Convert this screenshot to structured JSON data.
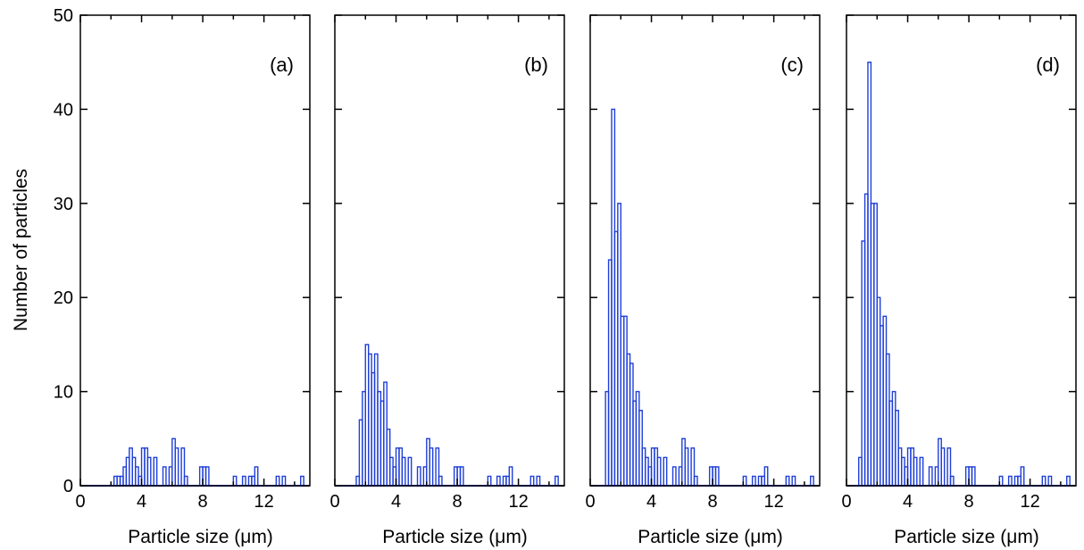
{
  "figure": {
    "ylabel": "Number of particles",
    "bar_color": "#1f3fd8"
  },
  "chart_data": [
    {
      "type": "bar",
      "panel_label": "(a)",
      "xlabel": "Particle size (μm)",
      "ylabel": "Number of particles",
      "xlim": [
        0,
        15
      ],
      "ylim": [
        0,
        50
      ],
      "xticks": [
        0,
        4,
        8,
        12
      ],
      "yticks": [
        0,
        10,
        20,
        30,
        40,
        50
      ],
      "bin_width": 0.2,
      "bins": [
        {
          "x": 2.2,
          "y": 1
        },
        {
          "x": 2.4,
          "y": 1
        },
        {
          "x": 2.6,
          "y": 1
        },
        {
          "x": 2.8,
          "y": 2
        },
        {
          "x": 3.0,
          "y": 3
        },
        {
          "x": 3.2,
          "y": 4
        },
        {
          "x": 3.4,
          "y": 3
        },
        {
          "x": 3.6,
          "y": 2
        },
        {
          "x": 3.8,
          "y": 1
        },
        {
          "x": 4.0,
          "y": 4
        },
        {
          "x": 4.2,
          "y": 4
        },
        {
          "x": 4.4,
          "y": 3
        },
        {
          "x": 4.8,
          "y": 3
        },
        {
          "x": 5.4,
          "y": 2
        },
        {
          "x": 5.8,
          "y": 2
        },
        {
          "x": 6.0,
          "y": 5
        },
        {
          "x": 6.2,
          "y": 4
        },
        {
          "x": 6.6,
          "y": 4
        },
        {
          "x": 6.8,
          "y": 1
        },
        {
          "x": 7.8,
          "y": 2
        },
        {
          "x": 8.0,
          "y": 2
        },
        {
          "x": 8.2,
          "y": 2
        },
        {
          "x": 10.0,
          "y": 1
        },
        {
          "x": 10.6,
          "y": 1
        },
        {
          "x": 11.0,
          "y": 1
        },
        {
          "x": 11.2,
          "y": 1
        },
        {
          "x": 11.4,
          "y": 2
        },
        {
          "x": 12.8,
          "y": 1
        },
        {
          "x": 13.2,
          "y": 1
        },
        {
          "x": 14.4,
          "y": 1
        }
      ]
    },
    {
      "type": "bar",
      "panel_label": "(b)",
      "xlabel": "Particle size (μm)",
      "ylabel": "",
      "xlim": [
        0,
        15
      ],
      "ylim": [
        0,
        50
      ],
      "xticks": [
        0,
        4,
        8,
        12
      ],
      "yticks": [
        0,
        10,
        20,
        30,
        40,
        50
      ],
      "bin_width": 0.2,
      "bins": [
        {
          "x": 1.4,
          "y": 1
        },
        {
          "x": 1.6,
          "y": 7
        },
        {
          "x": 1.8,
          "y": 10
        },
        {
          "x": 2.0,
          "y": 15
        },
        {
          "x": 2.2,
          "y": 14
        },
        {
          "x": 2.4,
          "y": 12
        },
        {
          "x": 2.6,
          "y": 14
        },
        {
          "x": 2.8,
          "y": 10
        },
        {
          "x": 3.0,
          "y": 9
        },
        {
          "x": 3.2,
          "y": 11
        },
        {
          "x": 3.4,
          "y": 6
        },
        {
          "x": 3.6,
          "y": 3
        },
        {
          "x": 3.8,
          "y": 2
        },
        {
          "x": 4.0,
          "y": 4
        },
        {
          "x": 4.2,
          "y": 4
        },
        {
          "x": 4.4,
          "y": 3
        },
        {
          "x": 4.8,
          "y": 3
        },
        {
          "x": 5.4,
          "y": 2
        },
        {
          "x": 5.8,
          "y": 2
        },
        {
          "x": 6.0,
          "y": 5
        },
        {
          "x": 6.2,
          "y": 4
        },
        {
          "x": 6.6,
          "y": 4
        },
        {
          "x": 6.8,
          "y": 1
        },
        {
          "x": 7.8,
          "y": 2
        },
        {
          "x": 8.0,
          "y": 2
        },
        {
          "x": 8.2,
          "y": 2
        },
        {
          "x": 10.0,
          "y": 1
        },
        {
          "x": 10.6,
          "y": 1
        },
        {
          "x": 11.0,
          "y": 1
        },
        {
          "x": 11.2,
          "y": 1
        },
        {
          "x": 11.4,
          "y": 2
        },
        {
          "x": 12.8,
          "y": 1
        },
        {
          "x": 13.2,
          "y": 1
        },
        {
          "x": 14.4,
          "y": 1
        }
      ]
    },
    {
      "type": "bar",
      "panel_label": "(c)",
      "xlabel": "Particle size (μm)",
      "ylabel": "",
      "xlim": [
        0,
        15
      ],
      "ylim": [
        0,
        50
      ],
      "xticks": [
        0,
        4,
        8,
        12
      ],
      "yticks": [
        0,
        10,
        20,
        30,
        40,
        50
      ],
      "bin_width": 0.2,
      "bins": [
        {
          "x": 1.0,
          "y": 10
        },
        {
          "x": 1.2,
          "y": 24
        },
        {
          "x": 1.4,
          "y": 40
        },
        {
          "x": 1.6,
          "y": 27
        },
        {
          "x": 1.8,
          "y": 30
        },
        {
          "x": 2.0,
          "y": 18
        },
        {
          "x": 2.2,
          "y": 18
        },
        {
          "x": 2.4,
          "y": 14
        },
        {
          "x": 2.6,
          "y": 13
        },
        {
          "x": 2.8,
          "y": 9
        },
        {
          "x": 3.0,
          "y": 10
        },
        {
          "x": 3.2,
          "y": 8
        },
        {
          "x": 3.4,
          "y": 4
        },
        {
          "x": 3.6,
          "y": 3
        },
        {
          "x": 3.8,
          "y": 2
        },
        {
          "x": 4.0,
          "y": 4
        },
        {
          "x": 4.2,
          "y": 4
        },
        {
          "x": 4.4,
          "y": 3
        },
        {
          "x": 4.8,
          "y": 3
        },
        {
          "x": 5.4,
          "y": 2
        },
        {
          "x": 5.8,
          "y": 2
        },
        {
          "x": 6.0,
          "y": 5
        },
        {
          "x": 6.2,
          "y": 4
        },
        {
          "x": 6.6,
          "y": 4
        },
        {
          "x": 6.8,
          "y": 1
        },
        {
          "x": 7.8,
          "y": 2
        },
        {
          "x": 8.0,
          "y": 2
        },
        {
          "x": 8.2,
          "y": 2
        },
        {
          "x": 10.0,
          "y": 1
        },
        {
          "x": 10.6,
          "y": 1
        },
        {
          "x": 11.0,
          "y": 1
        },
        {
          "x": 11.2,
          "y": 1
        },
        {
          "x": 11.4,
          "y": 2
        },
        {
          "x": 12.8,
          "y": 1
        },
        {
          "x": 13.2,
          "y": 1
        },
        {
          "x": 14.4,
          "y": 1
        }
      ]
    },
    {
      "type": "bar",
      "panel_label": "(d)",
      "xlabel": "Particle size (μm)",
      "ylabel": "",
      "xlim": [
        0,
        15
      ],
      "ylim": [
        0,
        50
      ],
      "xticks": [
        0,
        4,
        8,
        12
      ],
      "yticks": [
        0,
        10,
        20,
        30,
        40,
        50
      ],
      "bin_width": 0.2,
      "bins": [
        {
          "x": 0.8,
          "y": 3
        },
        {
          "x": 1.0,
          "y": 26
        },
        {
          "x": 1.2,
          "y": 31
        },
        {
          "x": 1.4,
          "y": 45
        },
        {
          "x": 1.6,
          "y": 30
        },
        {
          "x": 1.8,
          "y": 30
        },
        {
          "x": 2.0,
          "y": 20
        },
        {
          "x": 2.2,
          "y": 17
        },
        {
          "x": 2.4,
          "y": 18
        },
        {
          "x": 2.6,
          "y": 14
        },
        {
          "x": 2.8,
          "y": 9
        },
        {
          "x": 3.0,
          "y": 10
        },
        {
          "x": 3.2,
          "y": 8
        },
        {
          "x": 3.4,
          "y": 4
        },
        {
          "x": 3.6,
          "y": 3
        },
        {
          "x": 3.8,
          "y": 2
        },
        {
          "x": 4.0,
          "y": 4
        },
        {
          "x": 4.2,
          "y": 4
        },
        {
          "x": 4.4,
          "y": 3
        },
        {
          "x": 4.8,
          "y": 3
        },
        {
          "x": 5.4,
          "y": 2
        },
        {
          "x": 5.8,
          "y": 2
        },
        {
          "x": 6.0,
          "y": 5
        },
        {
          "x": 6.2,
          "y": 4
        },
        {
          "x": 6.6,
          "y": 4
        },
        {
          "x": 6.8,
          "y": 1
        },
        {
          "x": 7.8,
          "y": 2
        },
        {
          "x": 8.0,
          "y": 2
        },
        {
          "x": 8.2,
          "y": 2
        },
        {
          "x": 10.0,
          "y": 1
        },
        {
          "x": 10.6,
          "y": 1
        },
        {
          "x": 11.0,
          "y": 1
        },
        {
          "x": 11.2,
          "y": 1
        },
        {
          "x": 11.4,
          "y": 2
        },
        {
          "x": 12.8,
          "y": 1
        },
        {
          "x": 13.2,
          "y": 1
        },
        {
          "x": 14.4,
          "y": 1
        }
      ]
    }
  ]
}
